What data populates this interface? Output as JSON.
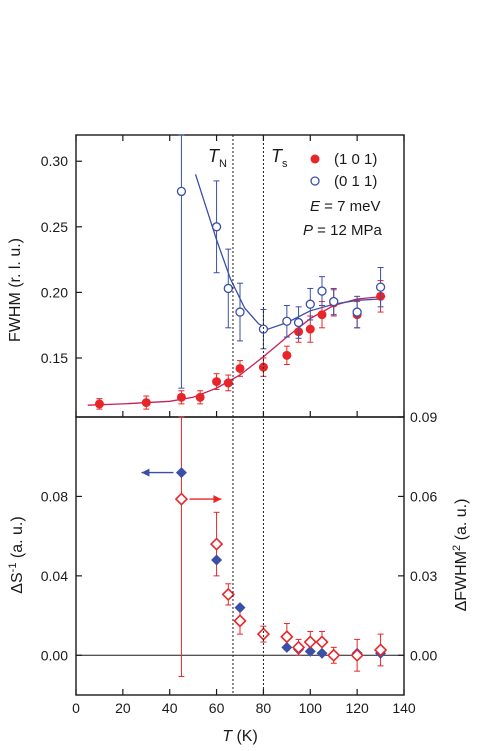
{
  "chart_data": [
    {
      "type": "scatter",
      "panel": "top",
      "ylabel": "FWHM (r. l. u.)",
      "xlim": [
        0,
        140
      ],
      "ylim": [
        0.105,
        0.32
      ],
      "y_ticks": [
        "0.15",
        "0.20",
        "0.25",
        "0.30"
      ],
      "annotations": {
        "tn_label": "T",
        "tn_sub": "N",
        "ts_label": "T",
        "ts_sub": "s",
        "energy_var": "E",
        "energy_val": " = 7 meV",
        "pressure_var": "P",
        "pressure_val": " = 12 MPa"
      },
      "series": [
        {
          "name": "(1 0 1)",
          "marker": "filled-circle",
          "color": "#e8262a",
          "x": [
            10,
            30,
            45,
            53,
            60,
            65,
            70,
            80,
            90,
            95,
            100,
            105,
            110,
            120,
            130
          ],
          "y": [
            0.115,
            0.116,
            0.12,
            0.12,
            0.132,
            0.131,
            0.142,
            0.143,
            0.152,
            0.17,
            0.172,
            0.183,
            0.192,
            0.183,
            0.197
          ],
          "err": [
            0.004,
            0.005,
            0.005,
            0.005,
            0.006,
            0.006,
            0.006,
            0.007,
            0.007,
            0.008,
            0.01,
            0.01,
            0.01,
            0.01,
            0.012
          ]
        },
        {
          "name": "(0 1 1)",
          "marker": "open-circle",
          "color": "#3a4fa8",
          "x": [
            45,
            60,
            65,
            70,
            80,
            90,
            95,
            100,
            105,
            110,
            120,
            130
          ],
          "y": [
            0.277,
            0.25,
            0.203,
            0.185,
            0.172,
            0.178,
            0.177,
            0.191,
            0.201,
            0.193,
            0.185,
            0.204
          ],
          "err": [
            0.15,
            0.035,
            0.03,
            0.022,
            0.015,
            0.012,
            0.012,
            0.012,
            0.011,
            0.01,
            0.012,
            0.015
          ]
        }
      ],
      "fit_lines": [
        {
          "color": "#c81e5a",
          "x": [
            5,
            20,
            40,
            50,
            60,
            70,
            80,
            90,
            100,
            110,
            120,
            132
          ],
          "y": [
            0.114,
            0.115,
            0.117,
            0.12,
            0.127,
            0.137,
            0.151,
            0.166,
            0.18,
            0.19,
            0.195,
            0.197
          ]
        },
        {
          "color": "#3a4fa8",
          "x": [
            51,
            60,
            66,
            72,
            78,
            82,
            90,
            100,
            110,
            120,
            130
          ],
          "y": [
            0.29,
            0.24,
            0.21,
            0.188,
            0.176,
            0.172,
            0.177,
            0.186,
            0.191,
            0.194,
            0.195
          ]
        }
      ]
    },
    {
      "type": "scatter",
      "panel": "bottom",
      "xlabel_var": "T",
      "xlabel_unit": " (K)",
      "xlim": [
        0,
        140
      ],
      "x_ticks": [
        "0",
        "20",
        "40",
        "60",
        "80",
        "100",
        "120",
        "140"
      ],
      "ylabel_left": {
        "prefix": "ΔS",
        "sup": "-1",
        "suffix": " (a. u.)"
      },
      "ylabel_right": {
        "prefix": "ΔFWHM",
        "sup": "2",
        "suffix": " (a. u.)"
      },
      "ylim_left": [
        -0.02,
        0.12
      ],
      "ylim_right": [
        -0.015,
        0.09
      ],
      "y_ticks_left": [
        "0.00",
        "0.04",
        "0.08"
      ],
      "y_ticks_right": [
        "0.00",
        "0.03",
        "0.06",
        "0.09"
      ],
      "series": [
        {
          "name": "ΔS⁻¹",
          "axis": "left",
          "marker": "filled-diamond",
          "color": "#3a4fa8",
          "x": [
            45,
            60,
            65,
            70,
            80,
            90,
            95,
            100,
            105,
            110,
            120,
            130
          ],
          "y": [
            0.092,
            0.048,
            0.031,
            0.024,
            0.011,
            0.004,
            0.003,
            0.002,
            0.001,
            0.0,
            0.001,
            0.001
          ]
        },
        {
          "name": "ΔFWHM²",
          "axis": "right",
          "marker": "open-diamond",
          "color": "#e8262a",
          "x": [
            45,
            60,
            65,
            70,
            80,
            90,
            95,
            100,
            105,
            110,
            120,
            130
          ],
          "y": [
            0.059,
            0.042,
            0.023,
            0.013,
            0.008,
            0.007,
            0.003,
            0.005,
            0.005,
            0.0,
            0.0,
            0.002
          ],
          "err": [
            0.067,
            0.012,
            0.004,
            0.005,
            0.003,
            0.005,
            0.003,
            0.004,
            0.004,
            0.003,
            0.006,
            0.006
          ]
        }
      ],
      "arrows": [
        {
          "color": "#3a4fa8",
          "direction": "left",
          "at_x": 45,
          "axis": "left",
          "at_y": 0.092
        },
        {
          "color": "#e8262a",
          "direction": "right",
          "at_x": 45,
          "axis": "right",
          "at_y": 0.059
        }
      ]
    }
  ],
  "vlines_x": [
    67,
    80
  ],
  "colors": {
    "axis": "#1a1a1a",
    "dash": "#1a1a1a"
  }
}
